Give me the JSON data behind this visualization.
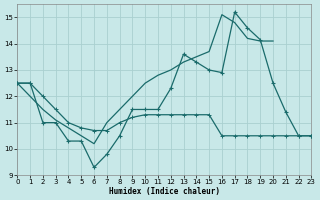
{
  "xlabel": "Humidex (Indice chaleur)",
  "xlim": [
    0,
    23
  ],
  "ylim": [
    9,
    15.5
  ],
  "yticks": [
    9,
    10,
    11,
    12,
    13,
    14,
    15
  ],
  "xticks": [
    0,
    1,
    2,
    3,
    4,
    5,
    6,
    7,
    8,
    9,
    10,
    11,
    12,
    13,
    14,
    15,
    16,
    17,
    18,
    19,
    20,
    21,
    22,
    23
  ],
  "bg_color": "#c8e8e8",
  "grid_color": "#aad0d0",
  "line_color": "#1a6b6b",
  "line_width": 0.9,
  "curve_zigzag_x": [
    0,
    1,
    2,
    3,
    4,
    5,
    6,
    7,
    8,
    9,
    10,
    11,
    12,
    13,
    14,
    15,
    16,
    17,
    18,
    19,
    20,
    21,
    22,
    23
  ],
  "curve_zigzag_y": [
    12.5,
    12.5,
    11.0,
    11.0,
    10.3,
    10.3,
    9.3,
    9.8,
    10.5,
    11.5,
    11.5,
    11.5,
    12.3,
    13.6,
    13.3,
    13.0,
    12.9,
    15.2,
    14.6,
    14.15,
    12.5,
    11.4,
    10.5,
    10.5
  ],
  "curve_flat_x": [
    0,
    1,
    2,
    3,
    4,
    5,
    6,
    7,
    8,
    9,
    10,
    11,
    12,
    13,
    14,
    15,
    16,
    17,
    18,
    19,
    20,
    21,
    22,
    23
  ],
  "curve_flat_y": [
    12.5,
    12.5,
    12.0,
    11.5,
    11.0,
    10.8,
    10.7,
    10.7,
    11.0,
    11.2,
    11.3,
    11.3,
    11.3,
    11.3,
    11.3,
    11.3,
    10.5,
    10.5,
    10.5,
    10.5,
    10.5,
    10.5,
    10.5,
    10.5
  ],
  "curve_trend_x": [
    0,
    1,
    2,
    3,
    4,
    5,
    6,
    7,
    8,
    9,
    10,
    11,
    12,
    13,
    14,
    15,
    16,
    17,
    18,
    19,
    20
  ],
  "curve_trend_y": [
    12.5,
    12.0,
    11.5,
    11.1,
    10.8,
    10.5,
    10.2,
    11.0,
    11.5,
    12.0,
    12.5,
    12.8,
    13.0,
    13.3,
    13.5,
    13.7,
    15.1,
    14.8,
    14.2,
    14.1,
    14.1
  ]
}
